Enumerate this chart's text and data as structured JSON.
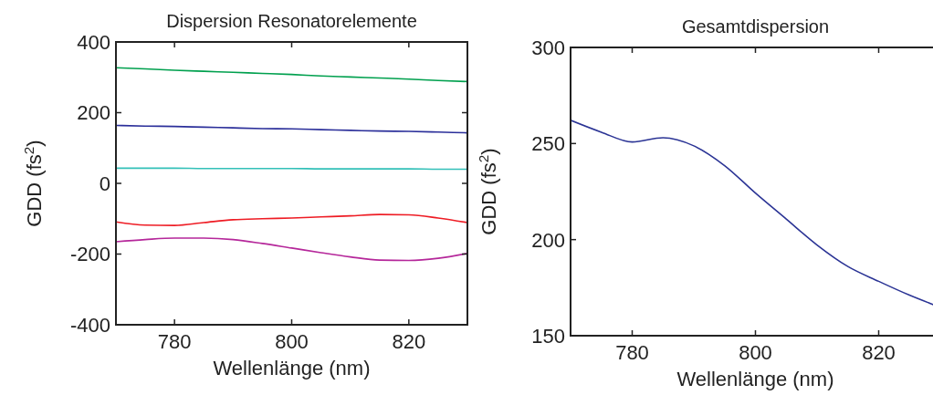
{
  "chart_data": [
    {
      "type": "line",
      "title": "Dispersion Resonatorelemente",
      "xlabel": "Wellenlänge (nm)",
      "ylabel": "GDD (fs$^{2}$)",
      "xlim": [
        770,
        830
      ],
      "ylim": [
        -400,
        400
      ],
      "xticks": [
        780,
        800,
        820
      ],
      "yticks": [
        -400,
        -200,
        0,
        200,
        400
      ],
      "grid": false,
      "x": [
        770,
        775,
        780,
        785,
        790,
        795,
        800,
        805,
        810,
        815,
        820,
        825,
        830
      ],
      "series": [
        {
          "color": "#00a04e",
          "values": [
            327,
            324,
            320,
            317,
            314,
            311,
            308,
            304,
            301,
            298,
            295,
            291,
            288
          ]
        },
        {
          "color": "#2b2f9a",
          "values": [
            164,
            162,
            161,
            159,
            157,
            155,
            154,
            152,
            150,
            148,
            147,
            145,
            143
          ]
        },
        {
          "color": "#33c0b8",
          "values": [
            43,
            43,
            43,
            42,
            42,
            42,
            42,
            41,
            41,
            41,
            41,
            40,
            40
          ]
        },
        {
          "color": "#ee1c24",
          "values": [
            -109,
            -118,
            -119,
            -111,
            -103,
            -100,
            -98,
            -95,
            -92,
            -88,
            -89,
            -98,
            -111
          ]
        },
        {
          "color": "#b5279a",
          "values": [
            -165,
            -159,
            -155,
            -155,
            -159,
            -170,
            -183,
            -196,
            -208,
            -217,
            -218,
            -212,
            -198
          ]
        }
      ]
    },
    {
      "type": "line",
      "title": "Gesamtdispersion",
      "xlabel": "Wellenlänge (nm)",
      "ylabel": "GDD (fs$^{2}$)",
      "xlim": [
        770,
        830
      ],
      "ylim": [
        150,
        300
      ],
      "xticks": [
        780,
        800,
        820
      ],
      "yticks": [
        150,
        200,
        250,
        300
      ],
      "grid": false,
      "x": [
        770,
        775,
        780,
        785,
        790,
        795,
        800,
        805,
        810,
        815,
        820,
        825,
        829
      ],
      "series": [
        {
          "color": "#2b3495",
          "values": [
            262.1,
            255.9,
            250.8,
            253,
            248.8,
            238.5,
            224.2,
            210.7,
            197.2,
            186,
            178.3,
            171.1,
            166
          ]
        }
      ]
    }
  ]
}
